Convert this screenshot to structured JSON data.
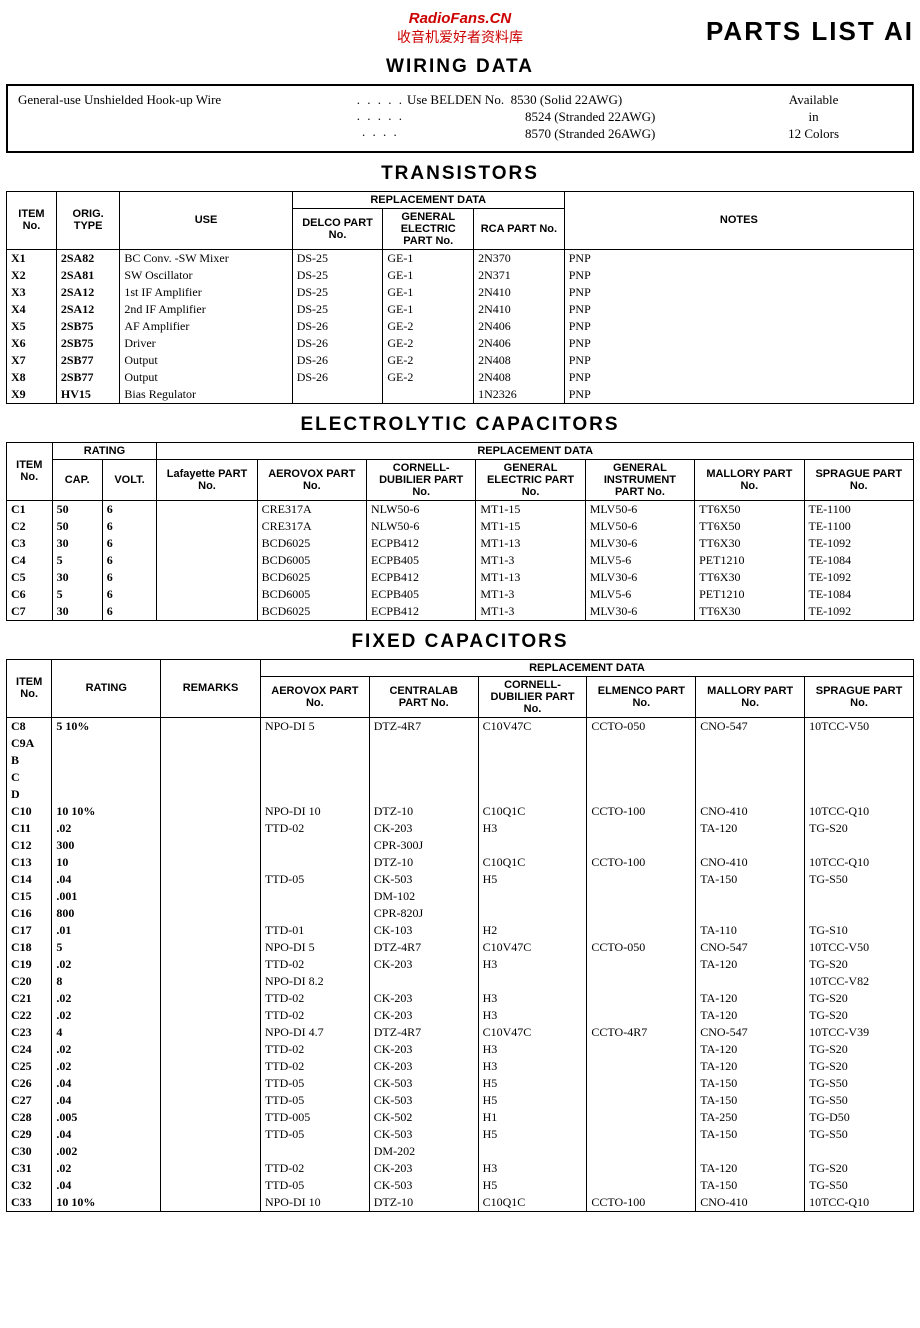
{
  "header": {
    "watermark_line1": "RadioFans.CN",
    "watermark_line2": "收音机爱好者资料库",
    "right_title": "PARTS LIST AI"
  },
  "wiring": {
    "title": "WIRING DATA",
    "left": "General-use Unshielded Hook-up Wire",
    "lead": "Use BELDEN No.",
    "rows": [
      "8530 (Solid 22AWG)",
      "8524 (Stranded 22AWG)",
      "8570 (Stranded 26AWG)"
    ],
    "right": [
      "Available",
      "in",
      "12 Colors"
    ]
  },
  "transistors": {
    "title": "TRANSISTORS",
    "headers": {
      "item": "ITEM No.",
      "orig": "ORIG. TYPE",
      "use": "USE",
      "repl": "REPLACEMENT DATA",
      "delco": "DELCO PART No.",
      "ge": "GENERAL ELECTRIC PART No.",
      "rca": "RCA PART No.",
      "notes": "NOTES"
    },
    "rows": [
      {
        "item": "X1",
        "orig": "2SA82",
        "use": "BC Conv. -SW Mixer",
        "delco": "DS-25",
        "ge": "GE-1",
        "rca": "2N370",
        "notes": "PNP"
      },
      {
        "item": "X2",
        "orig": "2SA81",
        "use": "SW Oscillator",
        "delco": "DS-25",
        "ge": "GE-1",
        "rca": "2N371",
        "notes": "PNP"
      },
      {
        "item": "X3",
        "orig": "2SA12",
        "use": "1st IF Amplifier",
        "delco": "DS-25",
        "ge": "GE-1",
        "rca": "2N410",
        "notes": "PNP"
      },
      {
        "item": "X4",
        "orig": "2SA12",
        "use": "2nd IF Amplifier",
        "delco": "DS-25",
        "ge": "GE-1",
        "rca": "2N410",
        "notes": "PNP"
      },
      {
        "item": "X5",
        "orig": "2SB75",
        "use": "AF Amplifier",
        "delco": "DS-26",
        "ge": "GE-2",
        "rca": "2N406",
        "notes": "PNP"
      },
      {
        "item": "X6",
        "orig": "2SB75",
        "use": "Driver",
        "delco": "DS-26",
        "ge": "GE-2",
        "rca": "2N406",
        "notes": "PNP"
      },
      {
        "item": "X7",
        "orig": "2SB77",
        "use": "Output",
        "delco": "DS-26",
        "ge": "GE-2",
        "rca": "2N408",
        "notes": "PNP"
      },
      {
        "item": "X8",
        "orig": "2SB77",
        "use": "Output",
        "delco": "DS-26",
        "ge": "GE-2",
        "rca": "2N408",
        "notes": "PNP"
      },
      {
        "item": "X9",
        "orig": "HV15",
        "use": "Bias Regulator",
        "delco": "",
        "ge": "",
        "rca": "1N2326",
        "notes": "PNP"
      }
    ]
  },
  "electrolytic": {
    "title": "ELECTROLYTIC CAPACITORS",
    "headers": {
      "item": "ITEM No.",
      "rating": "RATING",
      "cap": "CAP.",
      "volt": "VOLT.",
      "repl": "REPLACEMENT DATA",
      "laf": "Lafayette PART No.",
      "aero": "AEROVOX PART No.",
      "cd": "CORNELL-DUBILIER PART No.",
      "ge": "GENERAL ELECTRIC PART No.",
      "gi": "GENERAL INSTRUMENT PART No.",
      "mal": "MALLORY PART No.",
      "spr": "SPRAGUE PART No."
    },
    "rows": [
      {
        "item": "C1",
        "cap": "50",
        "volt": "6",
        "laf": "",
        "aero": "CRE317A",
        "cd": "NLW50-6",
        "ge": "MT1-15",
        "gi": "MLV50-6",
        "mal": "TT6X50",
        "spr": "TE-1100"
      },
      {
        "item": "C2",
        "cap": "50",
        "volt": "6",
        "laf": "",
        "aero": "CRE317A",
        "cd": "NLW50-6",
        "ge": "MT1-15",
        "gi": "MLV50-6",
        "mal": "TT6X50",
        "spr": "TE-1100"
      },
      {
        "item": "C3",
        "cap": "30",
        "volt": "6",
        "laf": "",
        "aero": "BCD6025",
        "cd": "ECPB412",
        "ge": "MT1-13",
        "gi": "MLV30-6",
        "mal": "TT6X30",
        "spr": "TE-1092"
      },
      {
        "item": "C4",
        "cap": "5",
        "volt": "6",
        "laf": "",
        "aero": "BCD6005",
        "cd": "ECPB405",
        "ge": "MT1-3",
        "gi": "MLV5-6",
        "mal": "PET1210",
        "spr": "TE-1084"
      },
      {
        "item": "C5",
        "cap": "30",
        "volt": "6",
        "laf": "",
        "aero": "BCD6025",
        "cd": "ECPB412",
        "ge": "MT1-13",
        "gi": "MLV30-6",
        "mal": "TT6X30",
        "spr": "TE-1092"
      },
      {
        "item": "C6",
        "cap": "5",
        "volt": "6",
        "laf": "",
        "aero": "BCD6005",
        "cd": "ECPB405",
        "ge": "MT1-3",
        "gi": "MLV5-6",
        "mal": "PET1210",
        "spr": "TE-1084"
      },
      {
        "item": "C7",
        "cap": "30",
        "volt": "6",
        "laf": "",
        "aero": "BCD6025",
        "cd": "ECPB412",
        "ge": "MT1-3",
        "gi": "MLV30-6",
        "mal": "TT6X30",
        "spr": "TE-1092"
      }
    ]
  },
  "fixed": {
    "title": "FIXED CAPACITORS",
    "headers": {
      "item": "ITEM No.",
      "rating": "RATING",
      "remarks": "REMARKS",
      "repl": "REPLACEMENT DATA",
      "aero": "AEROVOX PART No.",
      "cen": "CENTRALAB PART No.",
      "cd": "CORNELL-DUBILIER PART No.",
      "elm": "ELMENCO PART No.",
      "mal": "MALLORY PART No.",
      "spr": "SPRAGUE PART No."
    },
    "rows": [
      {
        "item": "C8",
        "rating": "5  10%",
        "remarks": "",
        "aero": "NPO-DI 5",
        "cen": "DTZ-4R7",
        "cd": "C10V47C",
        "elm": "CCTO-050",
        "mal": "CNO-547",
        "spr": "10TCC-V50"
      },
      {
        "item": "C9A",
        "rating": "",
        "remarks": "",
        "aero": "",
        "cen": "",
        "cd": "",
        "elm": "",
        "mal": "",
        "spr": ""
      },
      {
        "item": "B",
        "rating": "",
        "remarks": "",
        "aero": "",
        "cen": "",
        "cd": "",
        "elm": "",
        "mal": "",
        "spr": ""
      },
      {
        "item": "C",
        "rating": "",
        "remarks": "",
        "aero": "",
        "cen": "",
        "cd": "",
        "elm": "",
        "mal": "",
        "spr": ""
      },
      {
        "item": "D",
        "rating": "",
        "remarks": "",
        "aero": "",
        "cen": "",
        "cd": "",
        "elm": "",
        "mal": "",
        "spr": ""
      },
      {
        "item": "C10",
        "rating": "10  10%",
        "remarks": "",
        "aero": "NPO-DI 10",
        "cen": "DTZ-10",
        "cd": "C10Q1C",
        "elm": "CCTO-100",
        "mal": "CNO-410",
        "spr": "10TCC-Q10"
      },
      {
        "item": "C11",
        "rating": ".02",
        "remarks": "",
        "aero": "TTD-02",
        "cen": "CK-203",
        "cd": "H3",
        "elm": "",
        "mal": "TA-120",
        "spr": "TG-S20"
      },
      {
        "item": "C12",
        "rating": "300",
        "remarks": "",
        "aero": "",
        "cen": "CPR-300J",
        "cd": "",
        "elm": "",
        "mal": "",
        "spr": ""
      },
      {
        "item": "C13",
        "rating": "10",
        "remarks": "",
        "aero": "",
        "cen": "DTZ-10",
        "cd": "C10Q1C",
        "elm": "CCTO-100",
        "mal": "CNO-410",
        "spr": "10TCC-Q10"
      },
      {
        "item": "C14",
        "rating": ".04",
        "remarks": "",
        "aero": "TTD-05",
        "cen": "CK-503",
        "cd": "H5",
        "elm": "",
        "mal": "TA-150",
        "spr": "TG-S50"
      },
      {
        "item": "C15",
        "rating": ".001",
        "remarks": "",
        "aero": "",
        "cen": "DM-102",
        "cd": "",
        "elm": "",
        "mal": "",
        "spr": ""
      },
      {
        "item": "C16",
        "rating": "800",
        "remarks": "",
        "aero": "",
        "cen": "CPR-820J",
        "cd": "",
        "elm": "",
        "mal": "",
        "spr": ""
      },
      {
        "item": "C17",
        "rating": ".01",
        "remarks": "",
        "aero": "TTD-01",
        "cen": "CK-103",
        "cd": "H2",
        "elm": "",
        "mal": "TA-110",
        "spr": "TG-S10"
      },
      {
        "item": "C18",
        "rating": "5",
        "remarks": "",
        "aero": "NPO-DI 5",
        "cen": "DTZ-4R7",
        "cd": "C10V47C",
        "elm": "CCTO-050",
        "mal": "CNO-547",
        "spr": "10TCC-V50"
      },
      {
        "item": "C19",
        "rating": ".02",
        "remarks": "",
        "aero": "TTD-02",
        "cen": "CK-203",
        "cd": "H3",
        "elm": "",
        "mal": "TA-120",
        "spr": "TG-S20"
      },
      {
        "item": "C20",
        "rating": "8",
        "remarks": "",
        "aero": "NPO-DI 8.2",
        "cen": "",
        "cd": "",
        "elm": "",
        "mal": "",
        "spr": "10TCC-V82"
      },
      {
        "item": "C21",
        "rating": ".02",
        "remarks": "",
        "aero": "TTD-02",
        "cen": "CK-203",
        "cd": "H3",
        "elm": "",
        "mal": "TA-120",
        "spr": "TG-S20"
      },
      {
        "item": "C22",
        "rating": ".02",
        "remarks": "",
        "aero": "TTD-02",
        "cen": "CK-203",
        "cd": "H3",
        "elm": "",
        "mal": "TA-120",
        "spr": "TG-S20"
      },
      {
        "item": "C23",
        "rating": "4",
        "remarks": "",
        "aero": "NPO-DI 4.7",
        "cen": "DTZ-4R7",
        "cd": "C10V47C",
        "elm": "CCTO-4R7",
        "mal": "CNO-547",
        "spr": "10TCC-V39"
      },
      {
        "item": "C24",
        "rating": ".02",
        "remarks": "",
        "aero": "TTD-02",
        "cen": "CK-203",
        "cd": "H3",
        "elm": "",
        "mal": "TA-120",
        "spr": "TG-S20"
      },
      {
        "item": "C25",
        "rating": ".02",
        "remarks": "",
        "aero": "TTD-02",
        "cen": "CK-203",
        "cd": "H3",
        "elm": "",
        "mal": "TA-120",
        "spr": "TG-S20"
      },
      {
        "item": "C26",
        "rating": ".04",
        "remarks": "",
        "aero": "TTD-05",
        "cen": "CK-503",
        "cd": "H5",
        "elm": "",
        "mal": "TA-150",
        "spr": "TG-S50"
      },
      {
        "item": "C27",
        "rating": ".04",
        "remarks": "",
        "aero": "TTD-05",
        "cen": "CK-503",
        "cd": "H5",
        "elm": "",
        "mal": "TA-150",
        "spr": "TG-S50"
      },
      {
        "item": "C28",
        "rating": ".005",
        "remarks": "",
        "aero": "TTD-005",
        "cen": "CK-502",
        "cd": "H1",
        "elm": "",
        "mal": "TA-250",
        "spr": "TG-D50"
      },
      {
        "item": "C29",
        "rating": ".04",
        "remarks": "",
        "aero": "TTD-05",
        "cen": "CK-503",
        "cd": "H5",
        "elm": "",
        "mal": "TA-150",
        "spr": "TG-S50"
      },
      {
        "item": "C30",
        "rating": ".002",
        "remarks": "",
        "aero": "",
        "cen": "DM-202",
        "cd": "",
        "elm": "",
        "mal": "",
        "spr": ""
      },
      {
        "item": "C31",
        "rating": ".02",
        "remarks": "",
        "aero": "TTD-02",
        "cen": "CK-203",
        "cd": "H3",
        "elm": "",
        "mal": "TA-120",
        "spr": "TG-S20"
      },
      {
        "item": "C32",
        "rating": ".04",
        "remarks": "",
        "aero": "TTD-05",
        "cen": "CK-503",
        "cd": "H5",
        "elm": "",
        "mal": "TA-150",
        "spr": "TG-S50"
      },
      {
        "item": "C33",
        "rating": "10  10%",
        "remarks": "",
        "aero": "NPO-DI 10",
        "cen": "DTZ-10",
        "cd": "C10Q1C",
        "elm": "CCTO-100",
        "mal": "CNO-410",
        "spr": "10TCC-Q10"
      }
    ]
  }
}
